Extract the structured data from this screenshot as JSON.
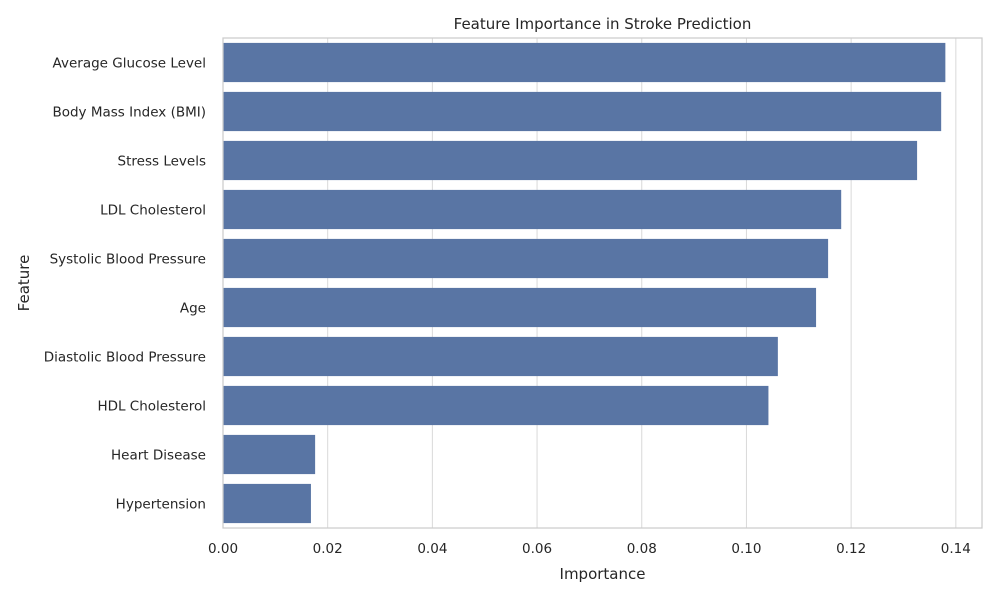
{
  "chart_data": {
    "type": "bar",
    "orientation": "horizontal",
    "title": "Feature Importance in Stroke Prediction",
    "xlabel": "Importance",
    "ylabel": "Feature",
    "categories": [
      "Average Glucose Level",
      "Body Mass Index (BMI)",
      "Stress Levels",
      "LDL Cholesterol",
      "Systolic Blood Pressure",
      "Age",
      "Diastolic Blood Pressure",
      "HDL Cholesterol",
      "Heart Disease",
      "Hypertension"
    ],
    "values": [
      0.138,
      0.1372,
      0.1326,
      0.1181,
      0.1156,
      0.1133,
      0.106,
      0.1042,
      0.0176,
      0.0168
    ],
    "xlim": [
      0,
      0.145
    ],
    "xticks": [
      0.0,
      0.02,
      0.04,
      0.06,
      0.08,
      0.1,
      0.12,
      0.14
    ],
    "xtick_labels": [
      "0.00",
      "0.02",
      "0.04",
      "0.06",
      "0.08",
      "0.10",
      "0.12",
      "0.14"
    ],
    "grid": "vertical",
    "colors": {
      "bar": "#5975a4",
      "grid": "#d9d9d9",
      "axes_frame": "#cccccc"
    }
  }
}
